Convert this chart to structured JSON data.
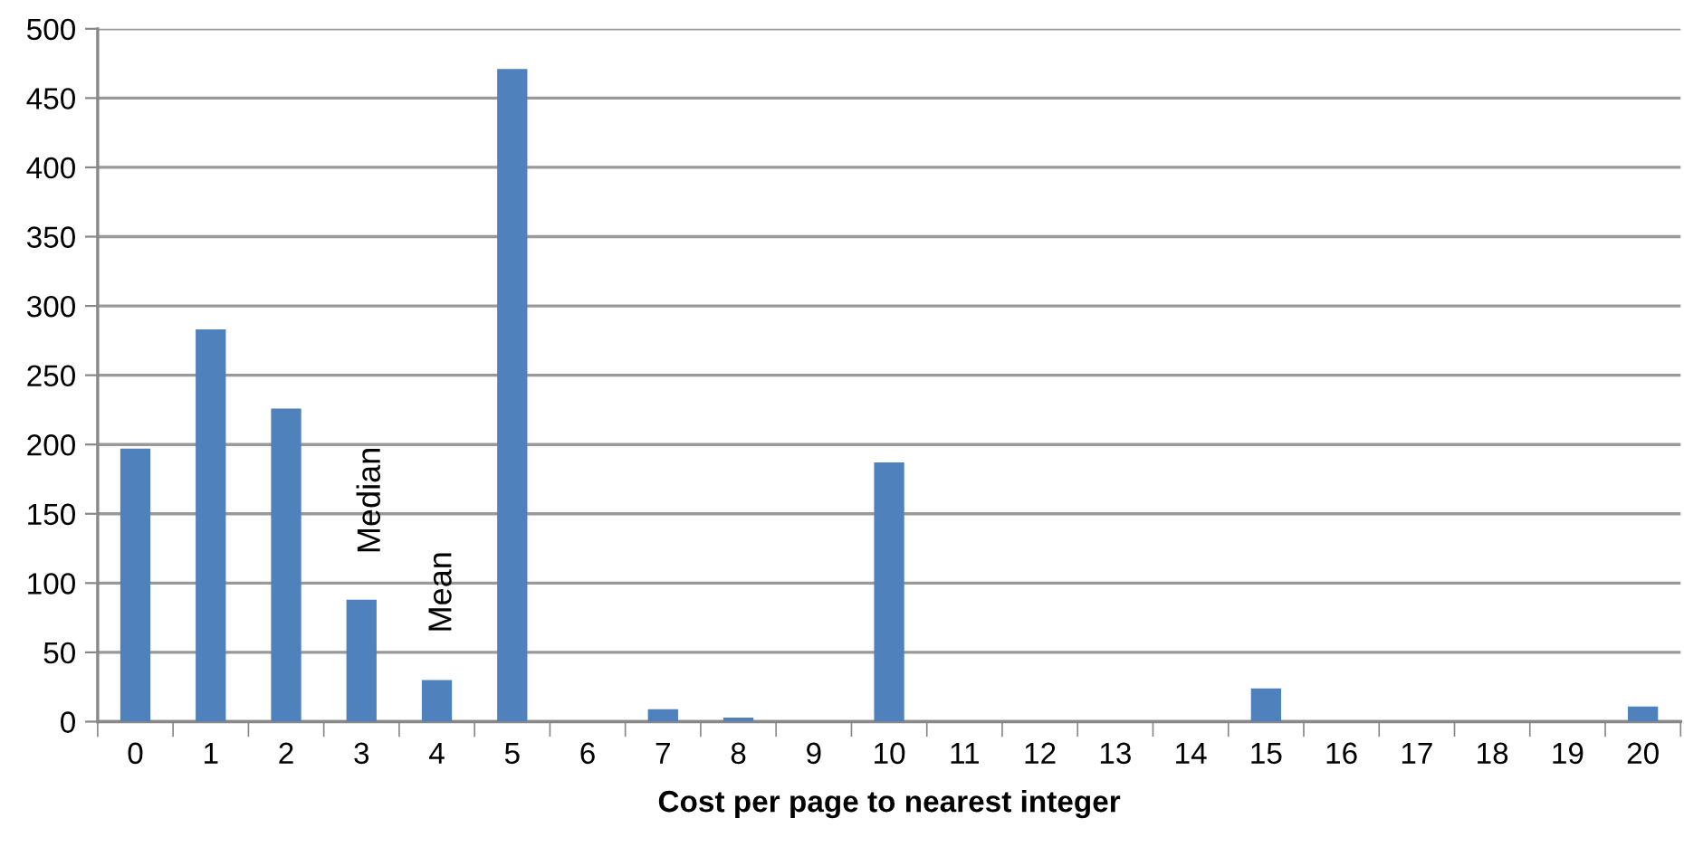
{
  "chart_data": {
    "type": "bar",
    "categories": [
      "0",
      "1",
      "2",
      "3",
      "4",
      "5",
      "6",
      "7",
      "8",
      "9",
      "10",
      "11",
      "12",
      "13",
      "14",
      "15",
      "16",
      "17",
      "18",
      "19",
      "20"
    ],
    "values": [
      197,
      283,
      226,
      88,
      30,
      471,
      0,
      9,
      3,
      0,
      187,
      0,
      0,
      0,
      0,
      24,
      0,
      0,
      0,
      0,
      11
    ],
    "color": "#4f81bd",
    "xlabel": "Cost per page to nearest integer",
    "ylim": [
      0,
      500
    ],
    "yticks": [
      0,
      50,
      100,
      150,
      200,
      250,
      300,
      350,
      400,
      450,
      500
    ],
    "grid": "y",
    "legend": false,
    "annotations": [
      "Median",
      "Mean"
    ]
  }
}
